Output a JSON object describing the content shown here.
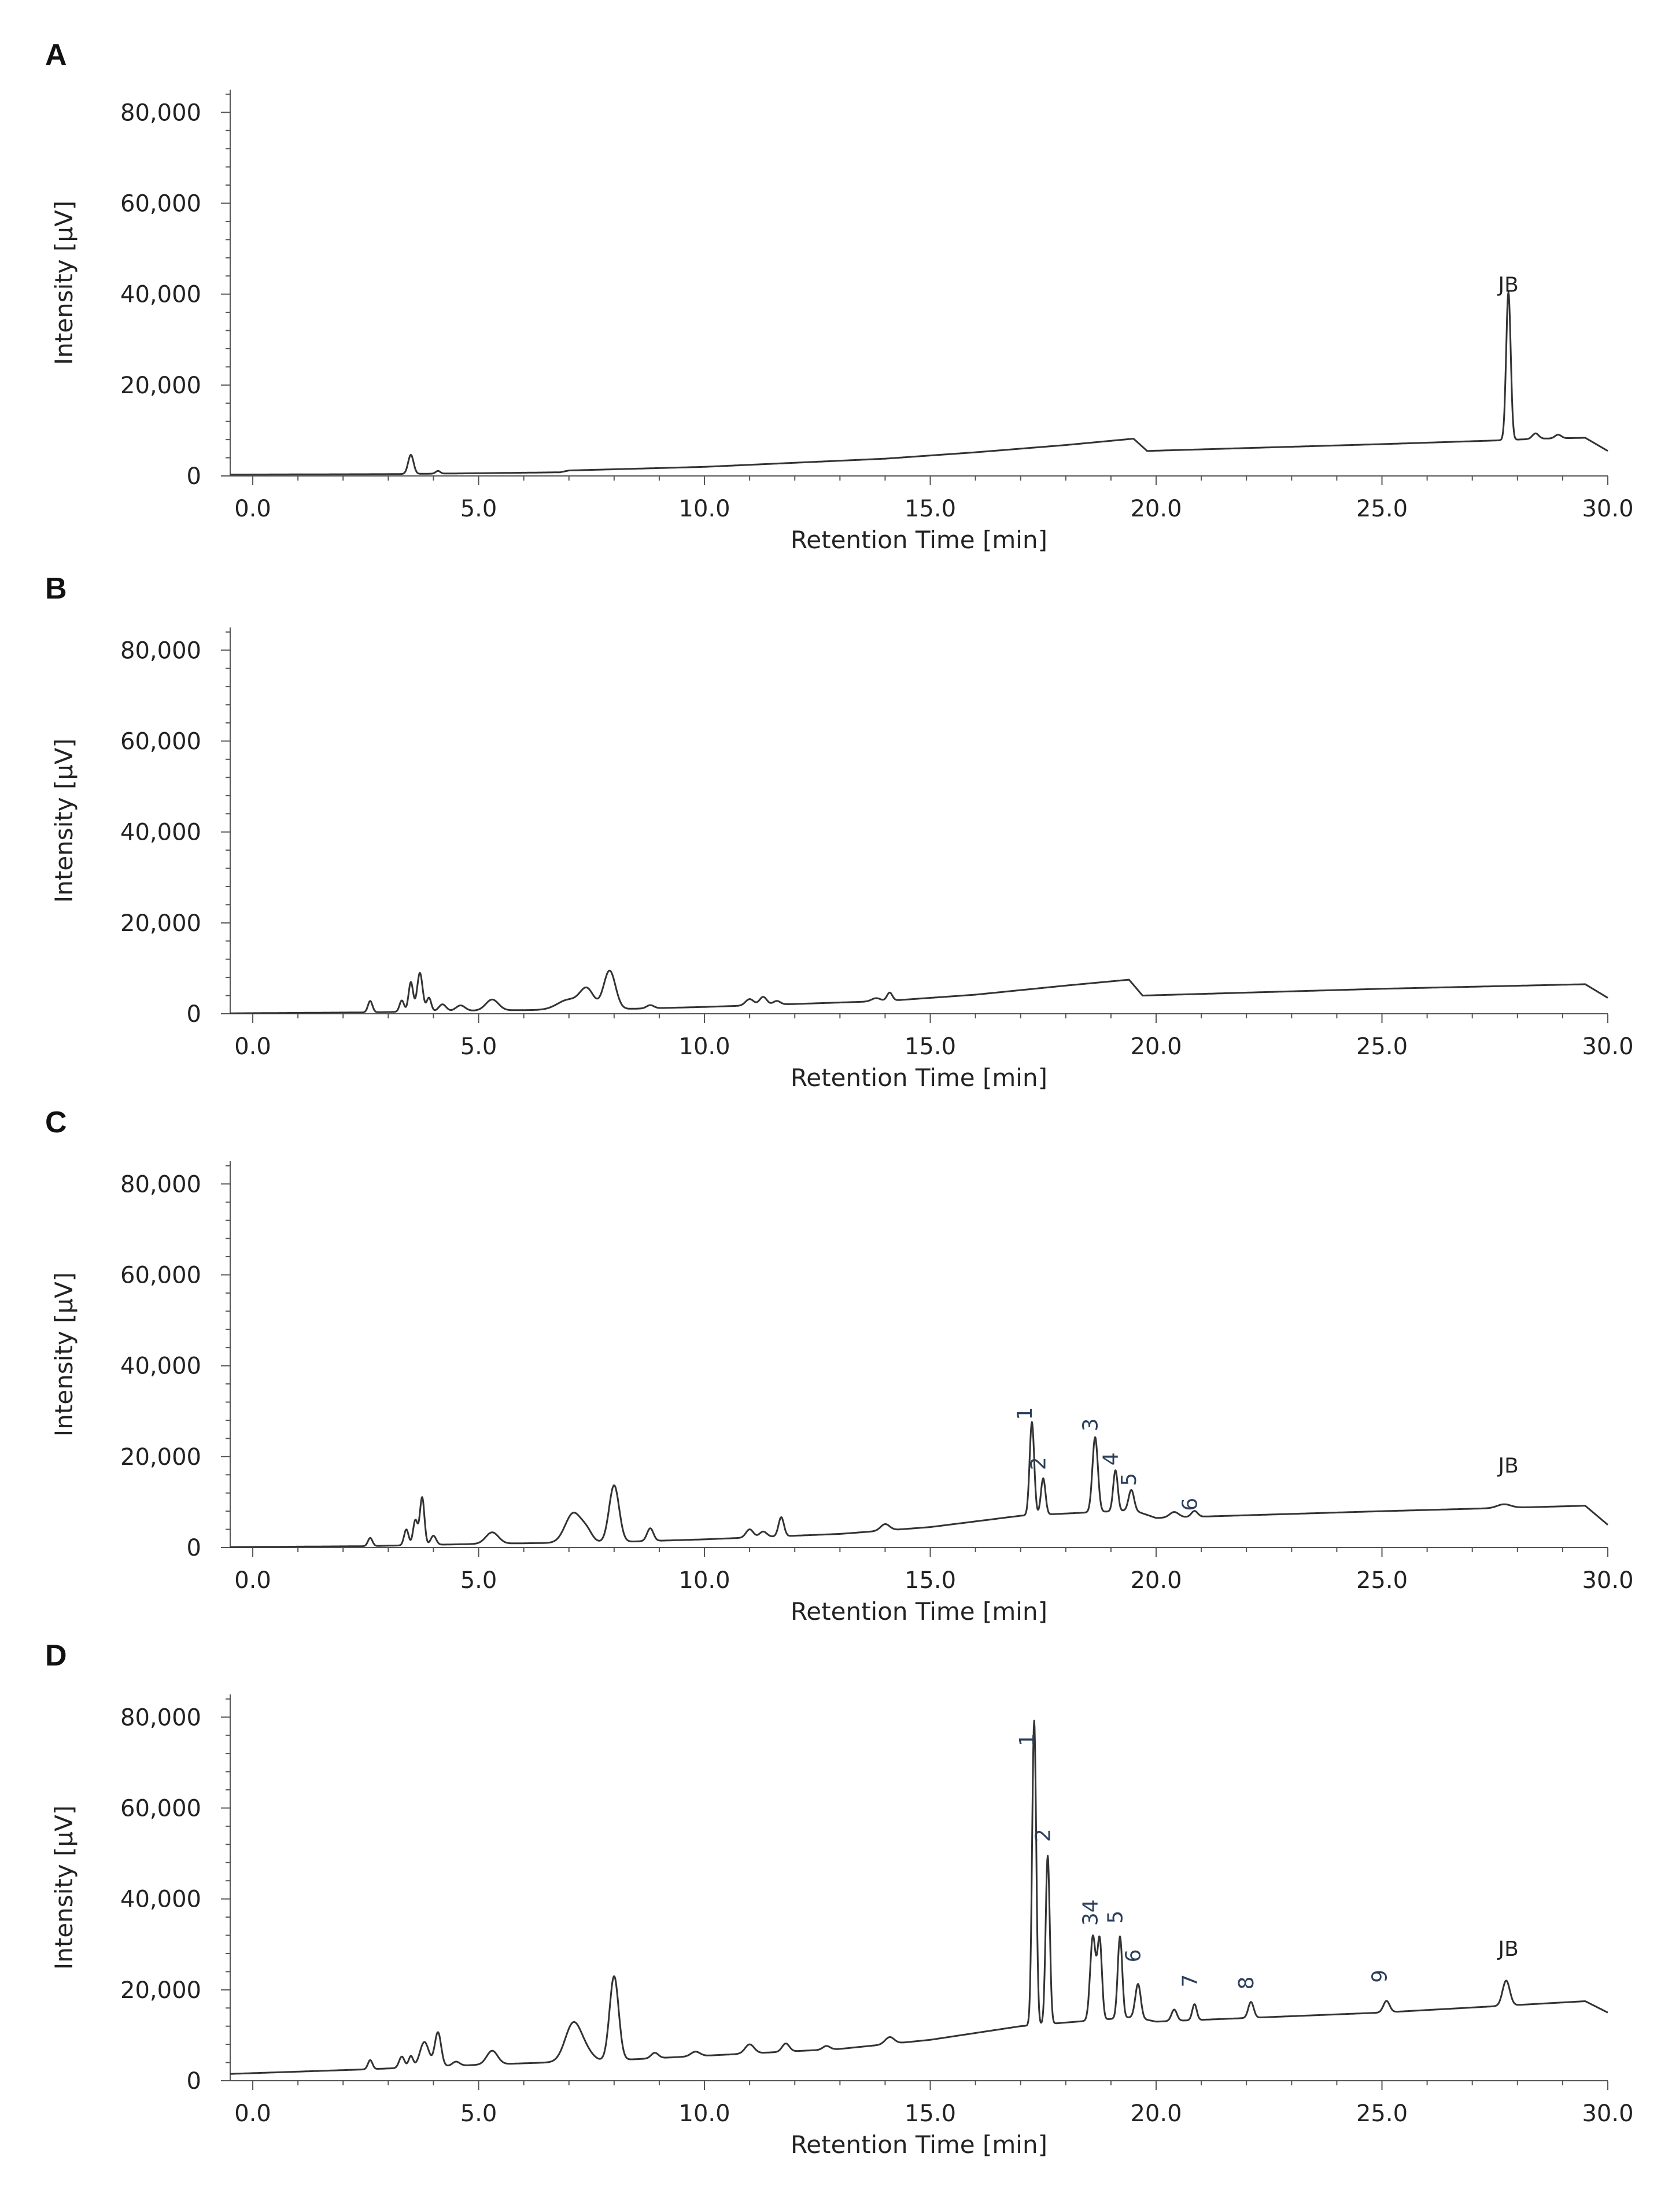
{
  "figure": {
    "panels": [
      {
        "letter": "A",
        "xlabel": "Retention Time [min]",
        "ylabel": "Intensity [μV]"
      },
      {
        "letter": "B",
        "xlabel": "Retention Time [min]",
        "ylabel": "Intensity [μV]"
      },
      {
        "letter": "C",
        "xlabel": "Retention Time [min]",
        "ylabel": "Intensity [μV]"
      },
      {
        "letter": "D",
        "xlabel": "Retention Time [min]",
        "ylabel": "Intensity [μV]"
      }
    ]
  },
  "colors": {
    "trace": "#333333",
    "axis": "#555555",
    "peak_number": "#2b3f5c"
  },
  "chart_data": [
    {
      "panel": "A",
      "type": "line",
      "title": "",
      "xlabel": "Retention Time [min]",
      "ylabel": "Intensity [μV]",
      "xlim": [
        -0.5,
        30.0
      ],
      "ylim": [
        0,
        85000
      ],
      "xticks": [
        "0.0",
        "5.0",
        "10.0",
        "15.0",
        "20.0",
        "25.0",
        "30.0"
      ],
      "yticks": [
        "0",
        "20,000",
        "40,000",
        "60,000",
        "80,000"
      ],
      "baseline": [
        [
          -0.5,
          300
        ],
        [
          3.0,
          400
        ],
        [
          5.0,
          600
        ],
        [
          6.8,
          800
        ],
        [
          7.0,
          1200
        ],
        [
          10.0,
          2000
        ],
        [
          14.0,
          3800
        ],
        [
          16.0,
          5200
        ],
        [
          18.0,
          6800
        ],
        [
          19.5,
          8200
        ],
        [
          19.8,
          5500
        ],
        [
          25.0,
          7000
        ],
        [
          27.5,
          7800
        ],
        [
          28.5,
          8200
        ],
        [
          29.5,
          8400
        ],
        [
          30.0,
          5500
        ]
      ],
      "peaks": [
        [
          3.5,
          4200,
          0.06
        ],
        [
          4.1,
          600,
          0.05
        ],
        [
          27.8,
          32500,
          0.05
        ],
        [
          28.4,
          1200,
          0.07
        ],
        [
          28.9,
          800,
          0.07
        ]
      ],
      "peak_labels": [
        {
          "text": "JB",
          "x": 27.8,
          "y": 40500
        }
      ]
    },
    {
      "panel": "B",
      "type": "line",
      "title": "",
      "xlabel": "Retention Time [min]",
      "ylabel": "Intensity [μV]",
      "xlim": [
        -0.5,
        30.0
      ],
      "ylim": [
        0,
        85000
      ],
      "xticks": [
        "0.0",
        "5.0",
        "10.0",
        "15.0",
        "20.0",
        "25.0",
        "30.0"
      ],
      "yticks": [
        "0",
        "20,000",
        "40,000",
        "60,000",
        "80,000"
      ],
      "baseline": [
        [
          -0.5,
          100
        ],
        [
          2.5,
          300
        ],
        [
          5.0,
          700
        ],
        [
          8.0,
          1000
        ],
        [
          10.0,
          1500
        ],
        [
          14.0,
          2800
        ],
        [
          16.0,
          4200
        ],
        [
          18.0,
          6200
        ],
        [
          19.4,
          7500
        ],
        [
          19.7,
          4000
        ],
        [
          25.0,
          5500
        ],
        [
          29.5,
          6500
        ],
        [
          30.0,
          3500
        ]
      ],
      "peaks": [
        [
          2.6,
          2500,
          0.05
        ],
        [
          3.3,
          2500,
          0.05
        ],
        [
          3.5,
          6500,
          0.05
        ],
        [
          3.7,
          8500,
          0.06
        ],
        [
          3.9,
          3000,
          0.05
        ],
        [
          4.2,
          1500,
          0.08
        ],
        [
          4.6,
          1200,
          0.1
        ],
        [
          5.3,
          2400,
          0.14
        ],
        [
          7.0,
          2200,
          0.25
        ],
        [
          7.4,
          4200,
          0.15
        ],
        [
          7.9,
          8500,
          0.13
        ],
        [
          8.8,
          700,
          0.08
        ],
        [
          11.0,
          1400,
          0.09
        ],
        [
          11.3,
          1800,
          0.08
        ],
        [
          11.6,
          800,
          0.08
        ],
        [
          13.8,
          700,
          0.1
        ],
        [
          14.1,
          1800,
          0.06
        ]
      ],
      "peak_labels": []
    },
    {
      "panel": "C",
      "type": "line",
      "title": "",
      "xlabel": "Retention Time [min]",
      "ylabel": "Intensity [μV]",
      "xlim": [
        -0.5,
        30.0
      ],
      "ylim": [
        0,
        85000
      ],
      "xticks": [
        "0.0",
        "5.0",
        "10.0",
        "15.0",
        "20.0",
        "25.0",
        "30.0"
      ],
      "yticks": [
        "0",
        "20,000",
        "40,000",
        "60,000",
        "80,000"
      ],
      "baseline": [
        [
          -0.5,
          100
        ],
        [
          2.5,
          300
        ],
        [
          5.0,
          800
        ],
        [
          8.0,
          1200
        ],
        [
          10.0,
          1800
        ],
        [
          13.0,
          3000
        ],
        [
          15.0,
          4500
        ],
        [
          17.0,
          7000
        ],
        [
          19.5,
          8200
        ],
        [
          20.0,
          6500
        ],
        [
          25.0,
          8000
        ],
        [
          29.5,
          9200
        ],
        [
          30.0,
          5000
        ]
      ],
      "peaks": [
        [
          2.6,
          1800,
          0.05
        ],
        [
          3.4,
          3500,
          0.05
        ],
        [
          3.6,
          5500,
          0.05
        ],
        [
          3.75,
          10500,
          0.05
        ],
        [
          4.0,
          2000,
          0.06
        ],
        [
          5.3,
          2500,
          0.14
        ],
        [
          7.1,
          6500,
          0.18
        ],
        [
          7.4,
          2000,
          0.12
        ],
        [
          8.0,
          12500,
          0.11
        ],
        [
          8.8,
          2800,
          0.07
        ],
        [
          11.0,
          1800,
          0.08
        ],
        [
          11.3,
          1200,
          0.08
        ],
        [
          11.7,
          4200,
          0.06
        ],
        [
          14.0,
          1400,
          0.1
        ],
        [
          17.25,
          20500,
          0.05
        ],
        [
          17.5,
          8000,
          0.05
        ],
        [
          18.65,
          16500,
          0.06
        ],
        [
          19.1,
          9000,
          0.05
        ],
        [
          19.45,
          4500,
          0.06
        ],
        [
          20.4,
          1200,
          0.1
        ],
        [
          20.85,
          1300,
          0.07
        ],
        [
          27.7,
          800,
          0.15
        ]
      ],
      "peak_labels": [
        {
          "text": "1",
          "x": 17.25,
          "y": 29500
        },
        {
          "text": "2",
          "x": 17.55,
          "y": 18500
        },
        {
          "text": "3",
          "x": 18.7,
          "y": 27000
        },
        {
          "text": "4",
          "x": 19.15,
          "y": 19500
        },
        {
          "text": "5",
          "x": 19.55,
          "y": 15000
        },
        {
          "text": "6",
          "x": 20.9,
          "y": 9500
        },
        {
          "text": "JB",
          "x": 27.8,
          "y": 16500
        }
      ]
    },
    {
      "panel": "D",
      "type": "line",
      "title": "",
      "xlabel": "Retention Time [min]",
      "ylabel": "Intensity [μV]",
      "xlim": [
        -0.5,
        30.0
      ],
      "ylim": [
        0,
        85000
      ],
      "xticks": [
        "0.0",
        "5.0",
        "10.0",
        "15.0",
        "20.0",
        "25.0",
        "30.0"
      ],
      "yticks": [
        "0",
        "20,000",
        "40,000",
        "60,000",
        "80,000"
      ],
      "baseline": [
        [
          -0.5,
          1500
        ],
        [
          2.5,
          2500
        ],
        [
          5.0,
          3500
        ],
        [
          8.0,
          4500
        ],
        [
          10.0,
          5500
        ],
        [
          13.0,
          7000
        ],
        [
          15.0,
          9000
        ],
        [
          17.0,
          12000
        ],
        [
          19.5,
          14000
        ],
        [
          20.0,
          13000
        ],
        [
          25.0,
          15000
        ],
        [
          29.5,
          17500
        ],
        [
          30.0,
          15000
        ]
      ],
      "peaks": [
        [
          2.6,
          2000,
          0.05
        ],
        [
          3.3,
          2500,
          0.06
        ],
        [
          3.5,
          2500,
          0.05
        ],
        [
          3.8,
          5500,
          0.1
        ],
        [
          4.1,
          7500,
          0.07
        ],
        [
          4.5,
          900,
          0.08
        ],
        [
          5.3,
          3000,
          0.12
        ],
        [
          7.1,
          8500,
          0.18
        ],
        [
          7.4,
          1500,
          0.15
        ],
        [
          8.0,
          18500,
          0.1
        ],
        [
          8.9,
          1200,
          0.08
        ],
        [
          9.8,
          1000,
          0.1
        ],
        [
          11.0,
          2000,
          0.1
        ],
        [
          11.8,
          1800,
          0.08
        ],
        [
          12.7,
          800,
          0.08
        ],
        [
          14.1,
          1500,
          0.1
        ],
        [
          17.3,
          67000,
          0.045
        ],
        [
          17.6,
          37000,
          0.045
        ],
        [
          18.6,
          18500,
          0.06
        ],
        [
          18.75,
          17500,
          0.05
        ],
        [
          19.2,
          18000,
          0.05
        ],
        [
          19.6,
          7500,
          0.06
        ],
        [
          20.4,
          2500,
          0.06
        ],
        [
          20.85,
          3500,
          0.05
        ],
        [
          22.1,
          3500,
          0.06
        ],
        [
          25.1,
          2500,
          0.07
        ],
        [
          27.75,
          5500,
          0.08
        ]
      ],
      "peak_labels": [
        {
          "text": "1",
          "x": 17.3,
          "y": 75000
        },
        {
          "text": "2",
          "x": 17.65,
          "y": 54000
        },
        {
          "text": "34",
          "x": 18.7,
          "y": 37000
        },
        {
          "text": "5",
          "x": 19.25,
          "y": 36000
        },
        {
          "text": "6",
          "x": 19.65,
          "y": 27500
        },
        {
          "text": "7",
          "x": 20.9,
          "y": 22000
        },
        {
          "text": "8",
          "x": 22.15,
          "y": 21500
        },
        {
          "text": "9",
          "x": 25.1,
          "y": 23000
        },
        {
          "text": "JB",
          "x": 27.8,
          "y": 27500
        }
      ]
    }
  ]
}
